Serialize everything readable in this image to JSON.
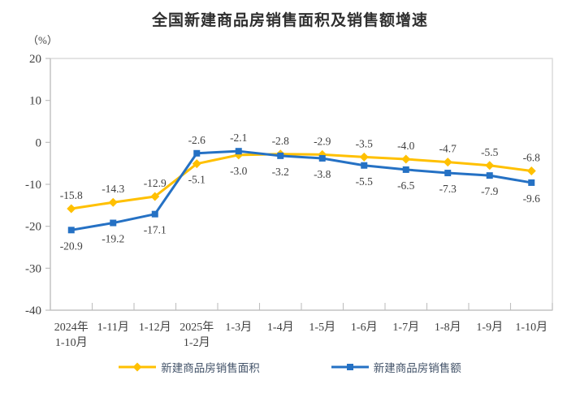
{
  "page": {
    "background": "#FFFFFF"
  },
  "chart_data": {
    "type": "line",
    "title": "全国新建商品房销售面积及销售额增速",
    "unit_label": "（%）",
    "categories": [
      "2024年\n1-10月",
      "1-11月",
      "1-12月",
      "2025年\n1-2月",
      "1-3月",
      "1-4月",
      "1-5月",
      "1-6月",
      "1-7月",
      "1-8月",
      "1-9月",
      "1-10月"
    ],
    "series": [
      {
        "name": "新建商品房销售面积",
        "color": "#FFC000",
        "marker": "diamond",
        "values": [
          -15.8,
          -14.3,
          -12.9,
          -5.1,
          -3.0,
          -2.8,
          -2.9,
          -3.5,
          -4.0,
          -4.7,
          -5.5,
          -6.8
        ]
      },
      {
        "name": "新建商品房销售额",
        "color": "#2571C4",
        "marker": "square",
        "values": [
          -20.9,
          -19.2,
          -17.1,
          -2.6,
          -2.1,
          -3.2,
          -3.8,
          -5.5,
          -6.5,
          -7.3,
          -7.9,
          -9.6
        ]
      }
    ],
    "ylim": [
      -40,
      20
    ],
    "yticks": [
      20,
      10,
      0,
      -10,
      -20,
      -30,
      -40
    ],
    "grid": false,
    "data_labels": true,
    "legend_position": "bottom",
    "colors": {
      "title_text": "#2F2F2F",
      "axis_line": "#BFBFBF",
      "plot_border": "#D9D9D9",
      "tick_label": "#3F3F3F",
      "data_label": "#3F3F3F",
      "legend_text": "#44546A"
    }
  }
}
